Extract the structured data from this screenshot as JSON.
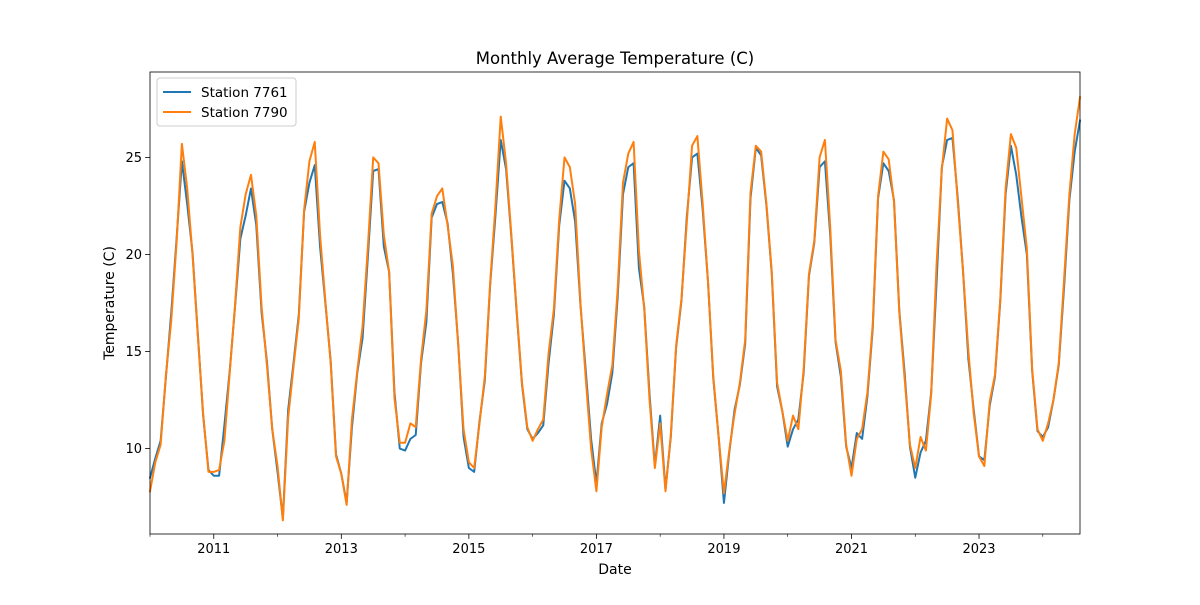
{
  "chart_data": {
    "type": "line",
    "title": "Monthly Average Temperature (C)",
    "xlabel": "Date",
    "ylabel": "Temperature (C)",
    "x_start": "2010-01",
    "x_end": "2024-08",
    "xlim": [
      "2010-01",
      "2024-08"
    ],
    "ylim": [
      5.6,
      29.4
    ],
    "x_ticks": [
      "2011",
      "2013",
      "2015",
      "2017",
      "2019",
      "2021",
      "2023"
    ],
    "y_ticks": [
      10,
      15,
      20,
      25
    ],
    "grid": false,
    "legend_position": "top-left",
    "series": [
      {
        "name": "Station 7761",
        "color": "#1f77b4",
        "values": [
          8.5,
          9.5,
          10.4,
          13.7,
          17.0,
          20.8,
          24.8,
          22.6,
          20.1,
          15.9,
          11.7,
          8.9,
          8.6,
          8.6,
          11.2,
          14.0,
          17.3,
          20.8,
          22.0,
          23.4,
          21.5,
          17.0,
          14.5,
          11.0,
          8.8,
          6.4,
          12.0,
          14.4,
          16.9,
          22.2,
          23.7,
          24.6,
          20.4,
          17.5,
          14.5,
          9.7,
          8.7,
          7.2,
          11.1,
          13.9,
          15.7,
          19.9,
          24.3,
          24.4,
          20.4,
          19.1,
          12.9,
          10.0,
          9.9,
          10.5,
          10.7,
          14.4,
          16.5,
          21.9,
          22.6,
          22.7,
          21.6,
          19.0,
          15.4,
          10.6,
          9.0,
          8.8,
          11.4,
          13.5,
          18.4,
          22.0,
          25.9,
          24.4,
          20.9,
          17.0,
          13.3,
          11.0,
          10.5,
          10.8,
          11.2,
          14.4,
          16.9,
          21.5,
          23.8,
          23.4,
          21.7,
          17.4,
          14.0,
          10.5,
          8.2,
          11.3,
          12.3,
          13.9,
          17.8,
          23.1,
          24.5,
          24.7,
          19.3,
          17.3,
          12.8,
          9.1,
          11.7,
          7.9,
          10.6,
          15.2,
          17.6,
          21.9,
          25.0,
          25.2,
          22.3,
          18.6,
          13.6,
          10.6,
          7.2,
          9.8,
          12.0,
          13.3,
          15.4,
          22.9,
          25.5,
          25.1,
          22.5,
          19.0,
          13.2,
          11.9,
          10.1,
          11.0,
          11.5,
          13.9,
          18.9,
          20.6,
          24.5,
          24.8,
          21.0,
          15.5,
          13.7,
          10.1,
          9.0,
          10.8,
          10.5,
          12.7,
          16.2,
          22.9,
          24.7,
          24.3,
          22.8,
          17.1,
          13.9,
          10.1,
          8.5,
          9.8,
          10.4,
          12.9,
          18.5,
          24.5,
          25.9,
          26.0,
          22.9,
          19.1,
          14.6,
          12.0,
          9.6,
          9.4,
          12.2,
          13.7,
          17.6,
          23.1,
          25.6,
          24.1,
          21.9,
          20.0,
          14.0,
          10.9,
          10.6,
          11.1,
          12.5,
          14.3,
          18.3,
          22.8,
          25.3,
          26.9
        ]
      },
      {
        "name": "Station 7790",
        "color": "#ff7f0e",
        "values": [
          7.8,
          9.3,
          10.2,
          13.8,
          16.6,
          20.6,
          25.7,
          23.4,
          20.0,
          15.8,
          11.8,
          8.8,
          8.8,
          8.9,
          10.4,
          13.9,
          17.4,
          21.4,
          23.1,
          24.1,
          22.0,
          17.3,
          14.3,
          11.0,
          9.1,
          6.3,
          11.6,
          14.2,
          16.7,
          22.3,
          24.8,
          25.8,
          21.0,
          17.6,
          14.4,
          9.6,
          8.7,
          7.1,
          11.5,
          14.0,
          16.3,
          20.4,
          25.0,
          24.7,
          21.0,
          19.1,
          12.6,
          10.3,
          10.3,
          11.3,
          11.1,
          14.6,
          17.1,
          22.1,
          23.0,
          23.4,
          21.5,
          19.4,
          15.3,
          11.0,
          9.3,
          9.0,
          11.3,
          13.7,
          18.5,
          22.5,
          27.1,
          24.7,
          21.0,
          17.1,
          13.4,
          11.1,
          10.4,
          11.0,
          11.5,
          14.9,
          17.2,
          21.8,
          25.0,
          24.5,
          22.6,
          17.5,
          13.6,
          10.0,
          7.8,
          11.1,
          12.8,
          14.3,
          18.2,
          23.7,
          25.2,
          25.8,
          20.2,
          17.2,
          12.5,
          9.0,
          11.3,
          7.8,
          10.7,
          15.3,
          17.7,
          21.6,
          25.6,
          26.1,
          22.6,
          18.6,
          13.7,
          10.6,
          7.7,
          9.9,
          11.8,
          13.4,
          15.6,
          23.2,
          25.6,
          25.3,
          22.6,
          19.1,
          13.4,
          11.9,
          10.4,
          11.7,
          11.0,
          14.1,
          19.0,
          20.7,
          25.0,
          25.9,
          21.4,
          15.6,
          14.0,
          10.2,
          8.6,
          10.5,
          11.0,
          12.9,
          16.4,
          23.0,
          25.3,
          24.9,
          22.7,
          17.0,
          13.6,
          10.2,
          9.0,
          10.6,
          9.9,
          12.8,
          19.4,
          24.4,
          27.0,
          26.4,
          22.7,
          19.1,
          15.0,
          11.8,
          9.6,
          9.1,
          12.4,
          13.8,
          17.7,
          23.4,
          26.2,
          25.5,
          22.9,
          20.3,
          14.1,
          11.0,
          10.4,
          11.3,
          12.5,
          14.4,
          18.7,
          23.1,
          26.2,
          28.1
        ]
      }
    ]
  }
}
